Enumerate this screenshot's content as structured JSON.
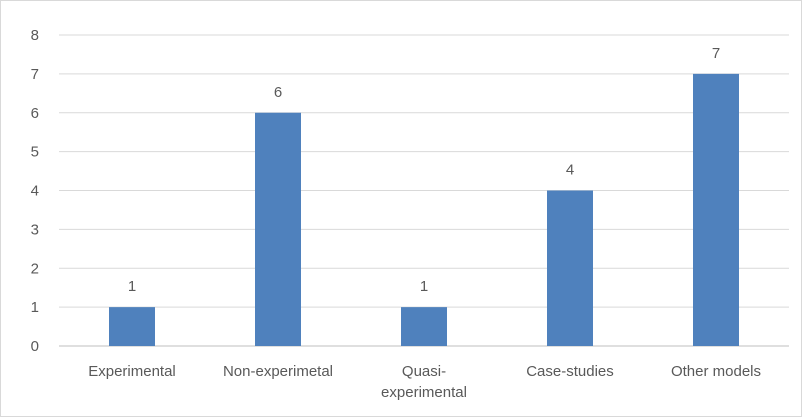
{
  "chart_data": {
    "type": "bar",
    "title": "",
    "xlabel": "",
    "ylabel": "",
    "categories": [
      [
        "Experimental"
      ],
      [
        "Non-experimetal"
      ],
      [
        "Quasi-",
        "experimental"
      ],
      [
        "Case-studies"
      ],
      [
        "Other models"
      ]
    ],
    "values": [
      1,
      6,
      1,
      4,
      7
    ],
    "ylim": [
      0,
      8
    ],
    "yticks": [
      "0",
      "1",
      "2",
      "3",
      "4",
      "5",
      "6",
      "7",
      "8"
    ],
    "data_labels": [
      "1",
      "6",
      "1",
      "4",
      "7"
    ],
    "grid": true,
    "legend": "none",
    "colors": {
      "bar": "#4f81bd",
      "grid": "#d9d9d9",
      "axis": "#bfbfbf",
      "text": "#595959"
    }
  }
}
